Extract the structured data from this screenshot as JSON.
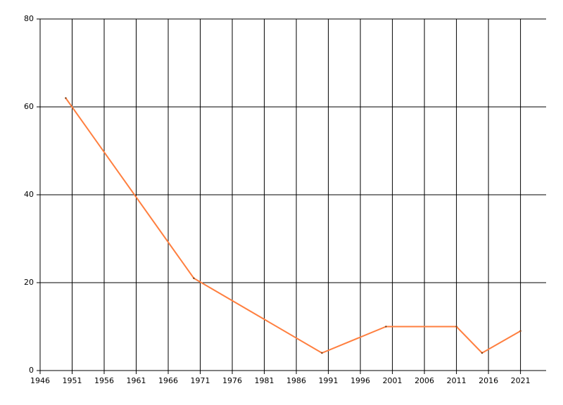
{
  "chart_data": {
    "type": "line",
    "series": [
      {
        "color": "#ff7f3f",
        "x": [
          1950,
          1970,
          1990,
          2000,
          2011,
          2015,
          2021
        ],
        "values": [
          62,
          21,
          4,
          10,
          10,
          4,
          9
        ]
      }
    ],
    "xlim": [
      1946,
      2025
    ],
    "xticks": [
      1946,
      1951,
      1956,
      1961,
      1966,
      1971,
      1976,
      1981,
      1986,
      1991,
      1996,
      2001,
      2006,
      2011,
      2016,
      2021
    ],
    "ylim": [
      0,
      80
    ],
    "yticks": [
      0,
      20,
      40,
      60,
      80
    ],
    "grid": true
  }
}
